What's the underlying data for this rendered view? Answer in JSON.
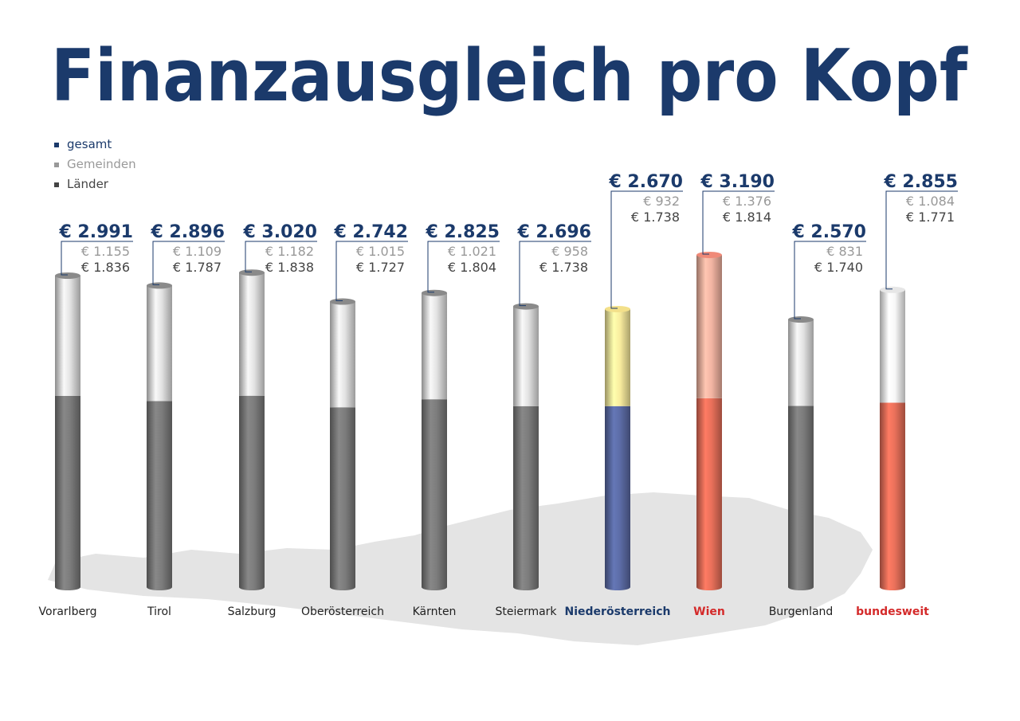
{
  "chart_data": {
    "type": "stacked-cylinder",
    "title": "Finanzausgleich pro Kopf",
    "categories": [
      "Vorarlberg",
      "Tirol",
      "Salzburg",
      "Oberösterreich",
      "Kärnten",
      "Steiermark",
      "Niederösterreich",
      "Wien",
      "Burgenland",
      "bundesweit"
    ],
    "category_colors": [
      "#222222",
      "#222222",
      "#222222",
      "#222222",
      "#222222",
      "#222222",
      "#1b3a6b",
      "#d42a2a",
      "#222222",
      "#d42a2a"
    ],
    "highlight": [
      false,
      false,
      false,
      false,
      false,
      false,
      true,
      true,
      false,
      true
    ],
    "series": [
      {
        "name": "gesamt",
        "color": "#1b3a6b",
        "colors": [
          "#8a8a8a",
          "#8a8a8a",
          "#8a8a8a",
          "#8a8a8a",
          "#8a8a8a",
          "#8a8a8a",
          "#f3e08a",
          "#f08a78",
          "#8a8a8a",
          "#e6e6e6"
        ],
        "values": [
          2991,
          2896,
          3020,
          2742,
          2825,
          2696,
          2670,
          3190,
          2570,
          2855
        ],
        "value_labels": [
          "€ 2.991",
          "€ 2.896",
          "€ 3.020",
          "€ 2.742",
          "€ 2.825",
          "€ 2.696",
          "€ 2.670",
          "€ 3.190",
          "€ 2.570",
          "€ 2.855"
        ]
      },
      {
        "name": "Gemeinden",
        "color": "#999999",
        "colors": [
          "#e2e2e2",
          "#e2e2e2",
          "#e2e2e2",
          "#e2e2e2",
          "#e2e2e2",
          "#e2e2e2",
          "#f8ec9e",
          "#f2b4a2",
          "#e2e2e2",
          "#f7f7f7"
        ],
        "values": [
          1155,
          1109,
          1182,
          1015,
          1021,
          958,
          932,
          1376,
          831,
          1084
        ],
        "value_labels": [
          "€ 1.155",
          "€ 1.109",
          "€ 1.182",
          "€ 1.015",
          "€ 1.021",
          "€ 958",
          "€ 932",
          "€ 1.376",
          "€ 831",
          "€ 1.084"
        ]
      },
      {
        "name": "Länder",
        "color": "#444444",
        "colors": [
          "#7c7c7c",
          "#7c7c7c",
          "#7c7c7c",
          "#7c7c7c",
          "#7c7c7c",
          "#7c7c7c",
          "#5c6ca6",
          "#e8705a",
          "#7c7c7c",
          "#e8705a"
        ],
        "values": [
          1836,
          1787,
          1838,
          1727,
          1804,
          1738,
          1738,
          1814,
          1740,
          1771
        ],
        "value_labels": [
          "€ 1.836",
          "€ 1.787",
          "€ 1.838",
          "€ 1.727",
          "€ 1.804",
          "€ 1.738",
          "€ 1.738",
          "€ 1.814",
          "€ 1.740",
          "€ 1.771"
        ]
      }
    ]
  }
}
